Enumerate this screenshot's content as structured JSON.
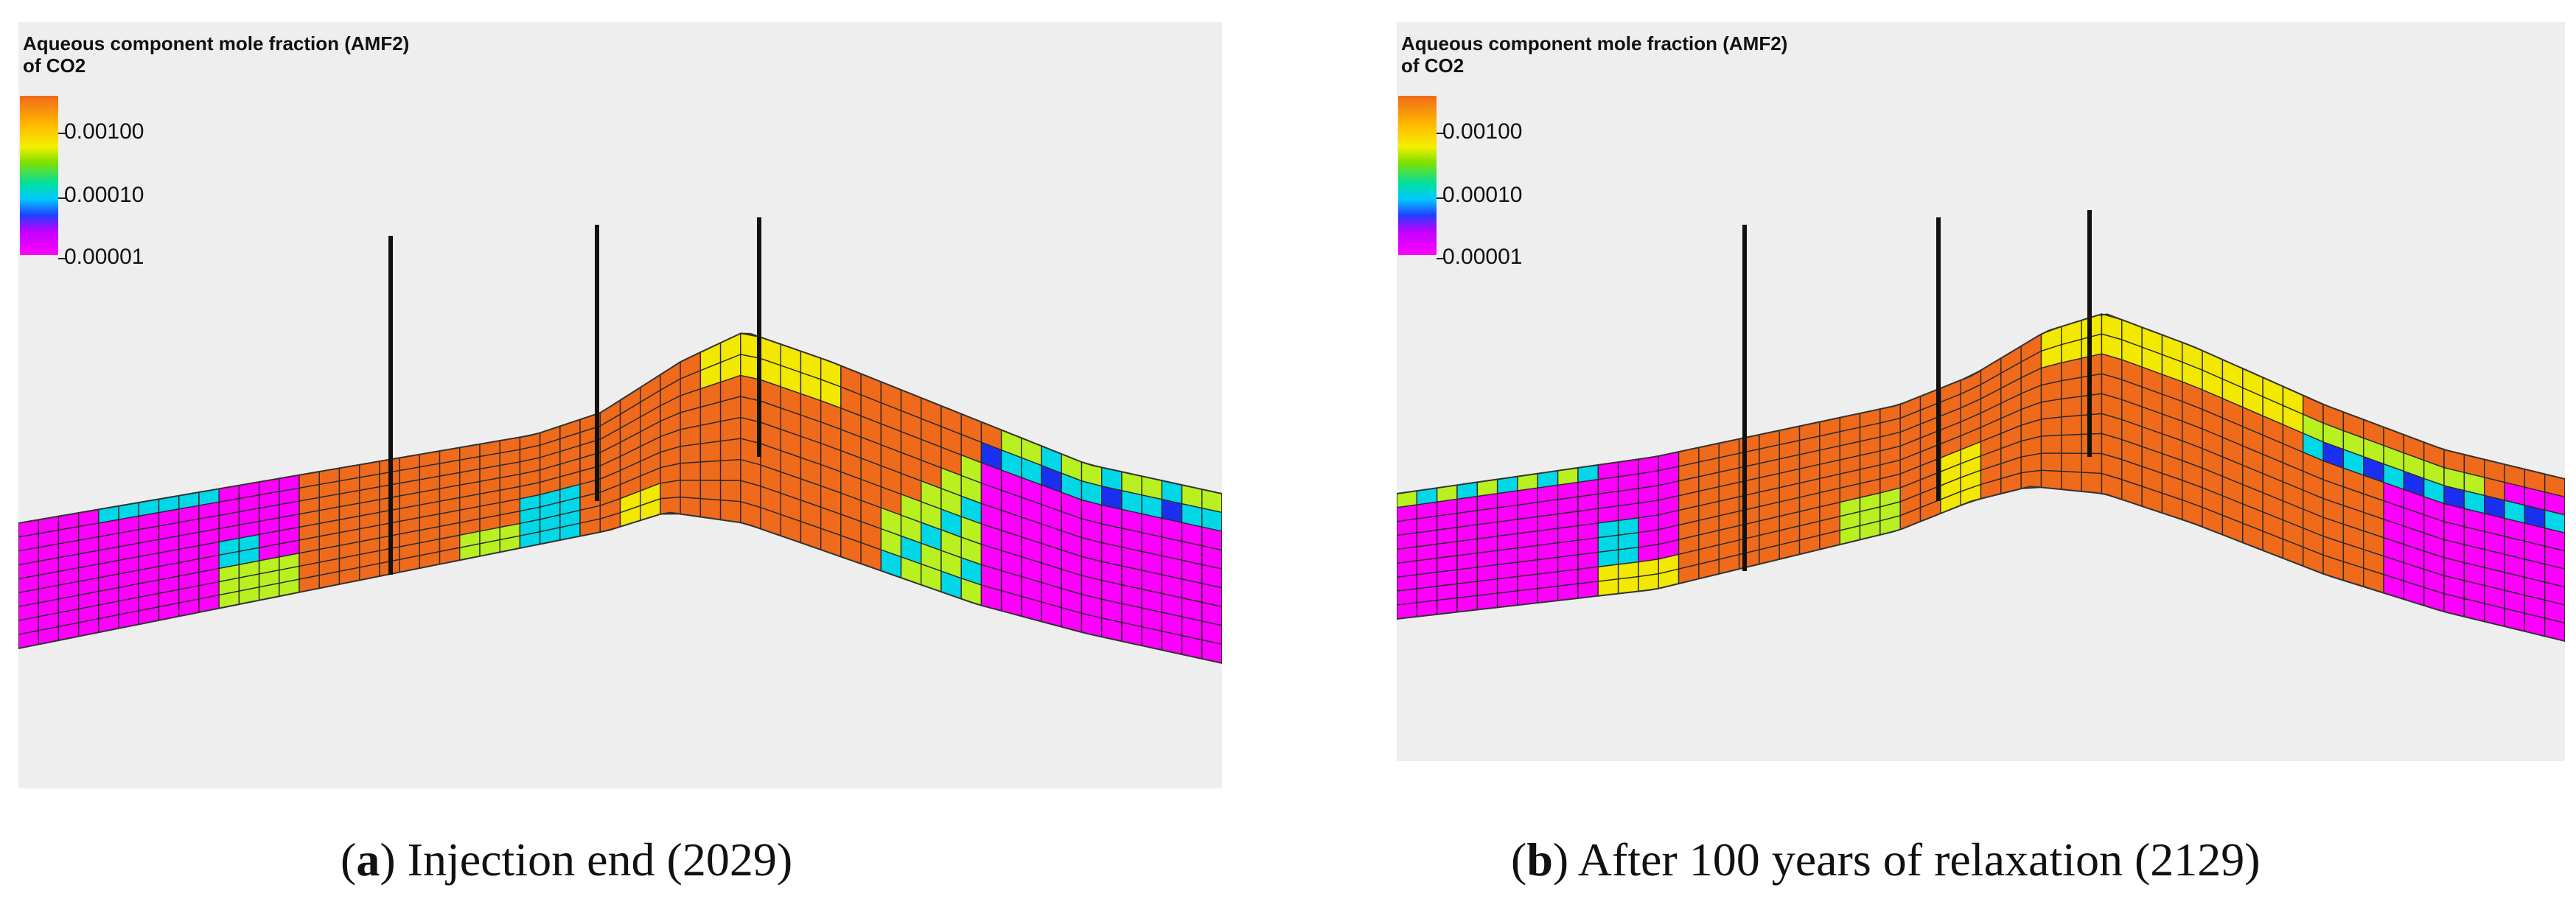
{
  "legend": {
    "title_line1": "Aqueous component mole fraction (AMF2)",
    "title_line2": "of CO2",
    "ticks": [
      "0.00100",
      "0.00010",
      "0.00001"
    ]
  },
  "colors": {
    "background": "#eeeeee",
    "orange": "#ef6a1a",
    "yellow": "#f2e800",
    "yellow_green": "#b8f020",
    "cyan": "#00d8e8",
    "blue": "#1a30f0",
    "magenta": "#ff00ff",
    "purple": "#a020ff",
    "grid": "#2a2a2a",
    "well": "#111111"
  },
  "panels": [
    {
      "id": "a",
      "caption_letter": "a",
      "caption_text": " Injection end (2029)",
      "wells": 3
    },
    {
      "id": "b",
      "caption_letter": "b",
      "caption_text": " After 100 years of relaxation (2129)",
      "wells": 3
    }
  ]
}
